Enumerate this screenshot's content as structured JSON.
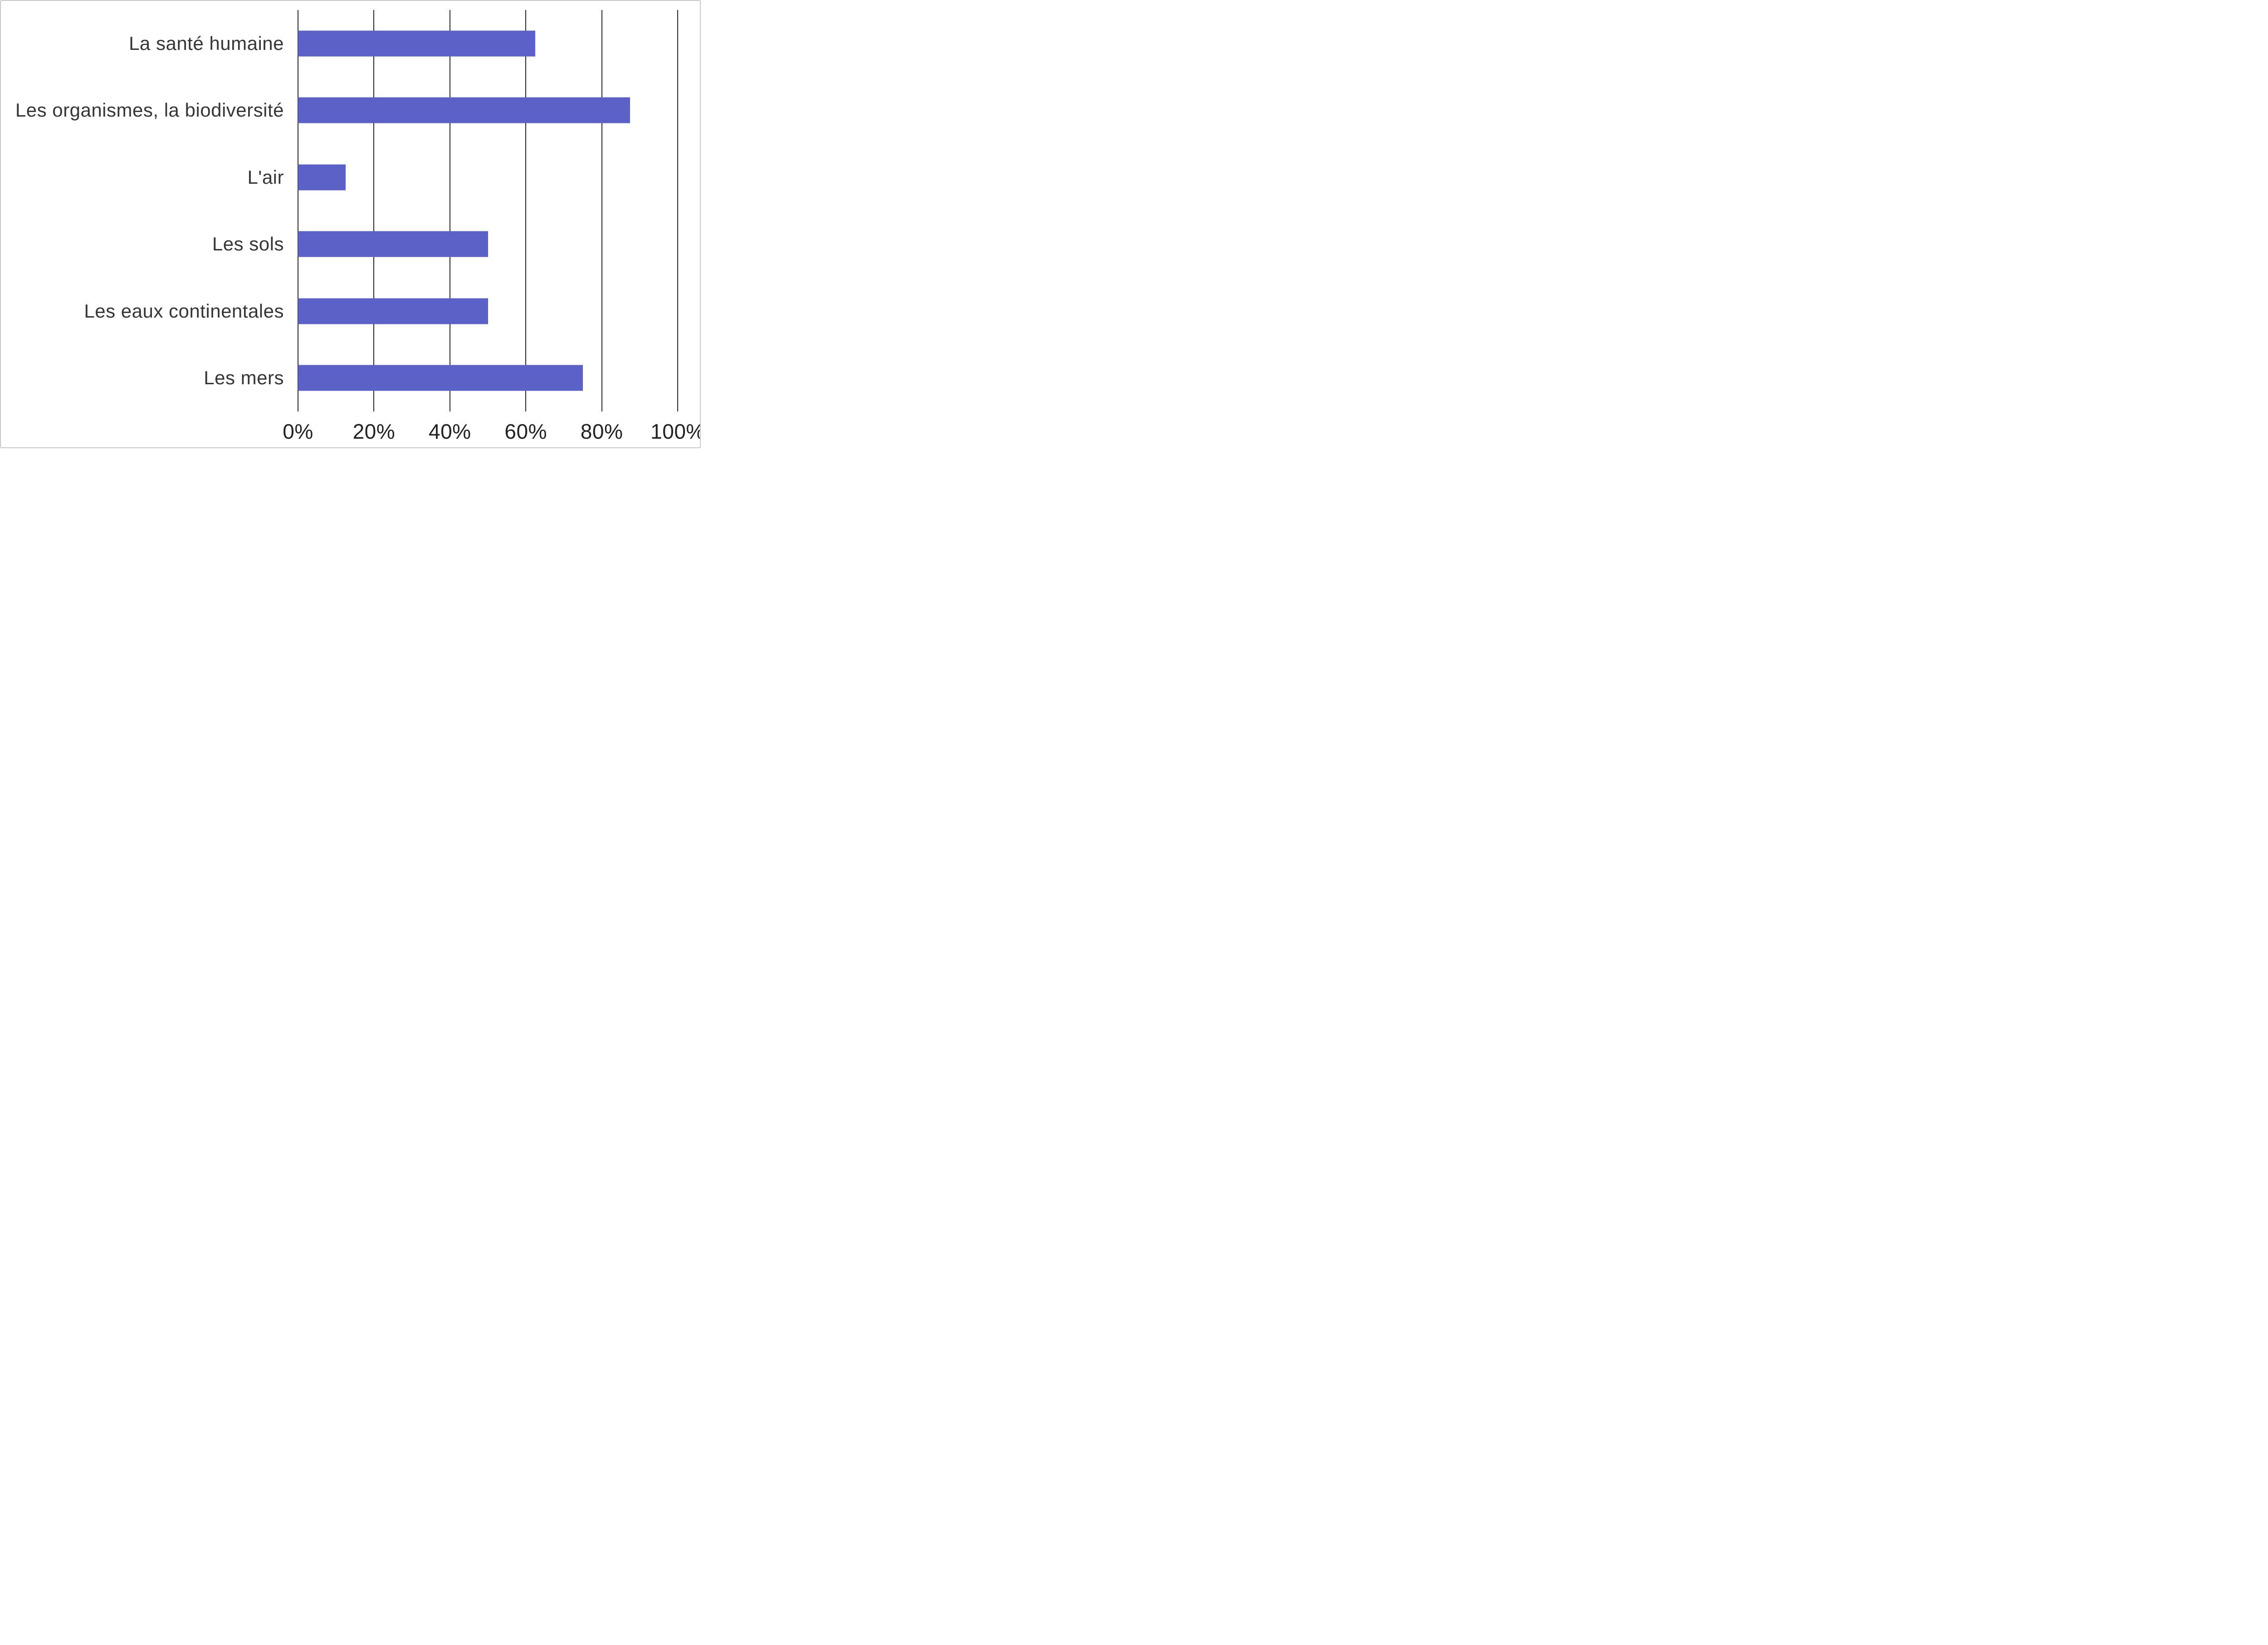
{
  "chart_data": {
    "type": "bar",
    "orientation": "horizontal",
    "title": "",
    "categories": [
      "La santé humaine",
      "Les organismes, la biodiversité",
      "L'air",
      "Les sols",
      "Les eaux continentales",
      "Les mers"
    ],
    "values": [
      62.5,
      87.5,
      12.5,
      50,
      50,
      75
    ],
    "value_unit": "%",
    "xlim": [
      0,
      100
    ],
    "x_ticks": [
      0,
      20,
      40,
      60,
      80,
      100
    ],
    "x_tick_labels": [
      "0%",
      "20%",
      "40%",
      "60%",
      "80%",
      "100%"
    ],
    "grid": "vertical",
    "legend": "none",
    "bar_color": "#5b61c7",
    "gridline_color": "#262626",
    "background_color": "#ffffff"
  }
}
